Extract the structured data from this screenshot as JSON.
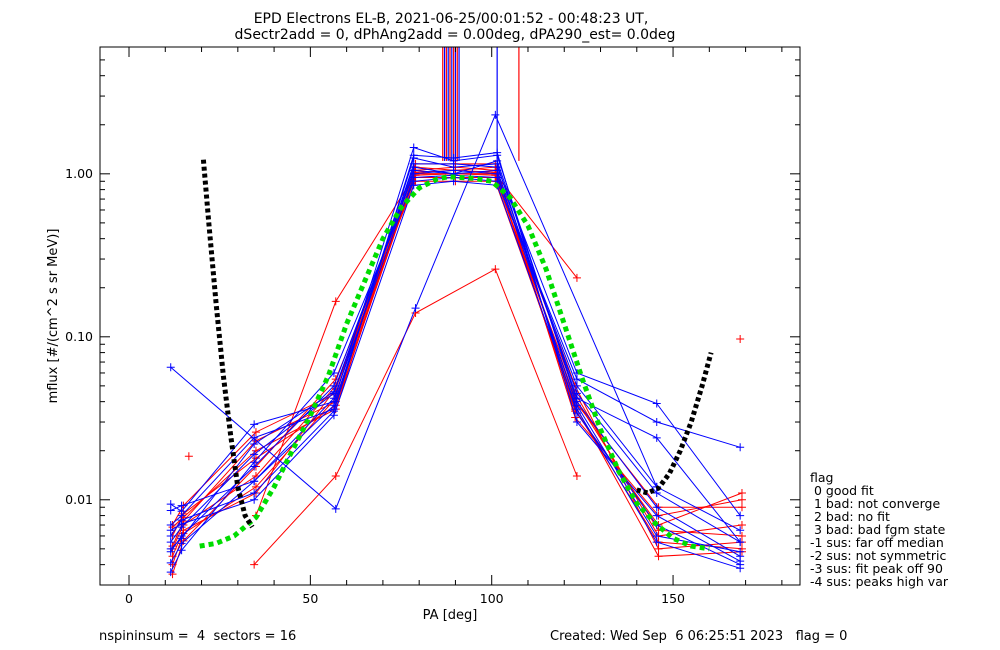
{
  "chart_data": {
    "type": "line",
    "title": "EPD Electrons EL-B, 2021-06-25/00:01:52 - 00:48:23 UT,",
    "subtitle": "dSectr2add = 0, dPhAng2add = 0.00deg, dPA290_est=    0.0deg",
    "xlabel": "PA [deg]",
    "ylabel": "mflux [#/(cm^2 s sr MeV)]",
    "xlim": [
      -8,
      185
    ],
    "ylim": [
      0.003,
      6.0
    ],
    "yscale": "log",
    "x_ticks": [
      0,
      50,
      100,
      150
    ],
    "x_tick_labels": [
      "0",
      "50",
      "100",
      "150"
    ],
    "y_ticks": [
      0.01,
      0.1,
      1.0
    ],
    "y_tick_labels": [
      "0.01",
      "0.10",
      "1.00"
    ],
    "grid": false,
    "colors": {
      "blue": "#0000ff",
      "red": "#ff0000",
      "green": "#00dd00",
      "black": "#000000"
    },
    "blue_pa": [
      11.5,
      14.5,
      34.5,
      56.5,
      78.5,
      89.5,
      101.5,
      123.5,
      145.5,
      168.5
    ],
    "red_pa": [
      12,
      15,
      35,
      57,
      79,
      90,
      101,
      123,
      146,
      169
    ],
    "spectra_blue": [
      [
        0.0094,
        0.0085,
        0.029,
        0.04,
        1.45,
        1.2,
        1.3,
        0.04,
        0.009,
        0.0045
      ],
      [
        0.007,
        0.008,
        0.024,
        0.036,
        1.25,
        1.1,
        1.15,
        0.034,
        0.007,
        0.004
      ],
      [
        0.0055,
        0.0068,
        0.019,
        0.045,
        1.1,
        1.0,
        1.05,
        0.045,
        0.011,
        0.0055
      ],
      [
        0.0048,
        0.006,
        0.016,
        0.05,
        1.0,
        1.05,
        1.0,
        0.038,
        0.006,
        0.0048
      ],
      [
        0.0041,
        0.0054,
        0.013,
        0.042,
        0.95,
        0.98,
        0.95,
        0.05,
        0.012,
        0.0065
      ],
      [
        0.006,
        0.0075,
        0.011,
        0.035,
        1.3,
        1.25,
        1.35,
        0.03,
        0.008,
        0.0042
      ],
      [
        0.0036,
        0.0049,
        0.017,
        0.06,
        0.9,
        0.95,
        0.9,
        0.055,
        0.03,
        0.021
      ],
      [
        0.0086,
        0.0092,
        0.013,
        0.038,
        1.15,
        1.15,
        1.1,
        0.06,
        0.039,
        0.008
      ],
      [
        0.005,
        0.0058,
        0.022,
        0.046,
        1.05,
        1.0,
        1.2,
        0.042,
        0.024,
        0.0055
      ],
      [
        0.0065,
        0.0071,
        0.01,
        0.033,
        0.85,
        0.9,
        0.85,
        0.036,
        0.0055,
        0.0038
      ]
    ],
    "spectra_red": [
      [
        0.007,
        0.0092,
        0.026,
        0.045,
        1.1,
        1.05,
        1.1,
        0.04,
        0.009,
        0.009
      ],
      [
        0.006,
        0.0082,
        0.018,
        0.038,
        1.0,
        1.0,
        1.0,
        0.035,
        0.007,
        0.011
      ],
      [
        0.005,
        0.007,
        0.014,
        0.05,
        0.95,
        0.95,
        0.95,
        0.045,
        0.006,
        0.007
      ],
      [
        0.004,
        0.0062,
        0.012,
        0.042,
        1.05,
        1.1,
        1.05,
        0.05,
        0.005,
        0.0055
      ],
      [
        0.0035,
        0.0056,
        0.016,
        0.055,
        0.9,
        0.9,
        0.9,
        0.038,
        0.0045,
        0.0048
      ],
      [
        0.0068,
        0.0078,
        0.02,
        0.036,
        1.15,
        1.15,
        1.15,
        0.032,
        0.008,
        0.01
      ],
      [
        0.0045,
        0.0065,
        0.011,
        0.048,
        0.98,
        1.0,
        0.98,
        0.042,
        0.0065,
        0.006
      ],
      [
        0.0052,
        0.0074,
        0.023,
        0.04,
        1.02,
        1.05,
        1.02,
        0.036,
        0.0055,
        0.005
      ]
    ],
    "outliers_blue": [
      {
        "x": [
          11.5,
          57,
          79,
          101,
          145.5
        ],
        "y": [
          0.065,
          0.0088,
          0.15,
          2.3,
          0.012
        ]
      }
    ],
    "outliers_red": [
      {
        "x": [
          34.5,
          57,
          79,
          101,
          123.5
        ],
        "y": [
          0.004,
          0.014,
          0.14,
          0.26,
          0.014
        ]
      },
      {
        "x": [
          35,
          57,
          79,
          101,
          123.5
        ],
        "y": [
          0.008,
          0.165,
          1.0,
          1.0,
          0.23
        ]
      }
    ],
    "isolated_points": [
      {
        "color": "red",
        "x": 16.5,
        "y": 0.0185
      },
      {
        "color": "red",
        "x": 168.5,
        "y": 0.097
      }
    ],
    "green_fit": {
      "x": [
        19.5,
        24,
        29,
        35,
        40,
        45,
        50,
        55,
        60,
        65,
        70,
        75,
        80,
        85,
        88,
        91,
        95,
        100,
        105,
        110,
        115,
        120,
        125,
        130,
        135,
        140,
        145,
        150,
        155,
        160
      ],
      "y": [
        0.0052,
        0.0054,
        0.006,
        0.0078,
        0.012,
        0.02,
        0.033,
        0.058,
        0.12,
        0.22,
        0.4,
        0.62,
        0.82,
        0.93,
        0.96,
        0.95,
        0.94,
        0.9,
        0.72,
        0.48,
        0.26,
        0.12,
        0.055,
        0.027,
        0.015,
        0.0095,
        0.0072,
        0.0058,
        0.0052,
        0.005
      ]
    },
    "black_fit_left": {
      "x": [
        20.5,
        22,
        24,
        26,
        28,
        30,
        32,
        34
      ],
      "y": [
        1.22,
        0.5,
        0.16,
        0.058,
        0.025,
        0.012,
        0.008,
        0.0068
      ]
    },
    "black_fit_right": {
      "x": [
        140,
        143,
        146,
        149,
        152,
        155,
        158,
        160.5
      ],
      "y": [
        0.0115,
        0.011,
        0.0118,
        0.0145,
        0.02,
        0.03,
        0.05,
        0.08
      ]
    },
    "saturated_lines": [
      {
        "color": "blue",
        "x": [
          87,
          88,
          89,
          90,
          91
        ]
      },
      {
        "color": "red",
        "x": [
          86.5,
          87.5,
          88.5,
          89.5,
          90.5
        ]
      },
      {
        "color": "red",
        "x": [
          107.5
        ]
      },
      {
        "color": "blue",
        "x": [
          101.5
        ]
      }
    ],
    "legend": {
      "title": "flag",
      "items": [
        " 0 good fit",
        " 1 bad: not converge",
        " 2 bad: no fit",
        " 3 bad: bad fgm state",
        "-1 sus: far off median",
        "-2 sus: not symmetric",
        "-3 sus: fit peak off 90",
        "-4 sus: peaks high var"
      ],
      "placement": "right"
    },
    "footer_left": "nspininsum =  4  sectors = 16",
    "footer_right": "Created: Wed Sep  6 06:25:51 2023   flag = 0"
  }
}
